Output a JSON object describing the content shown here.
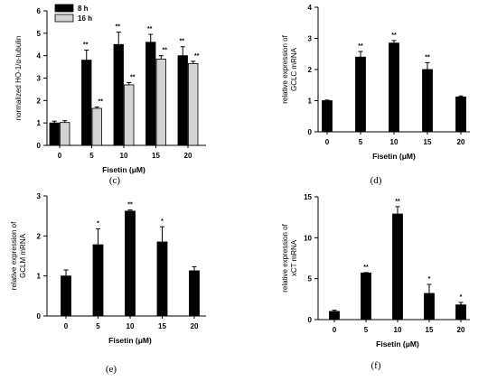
{
  "chart_data": [
    {
      "panel": "(c)",
      "type": "bar",
      "categories": [
        "0",
        "5",
        "10",
        "15",
        "20"
      ],
      "xlabel": "Fisetin (μM)",
      "ylabel": "normalized HO-1/α-tubulin",
      "ylim": [
        0,
        6
      ],
      "yticks": [
        0,
        1,
        2,
        3,
        4,
        5,
        6
      ],
      "legend_position": "top-left",
      "series": [
        {
          "name": "8 h",
          "color": "#000000",
          "values": [
            1.0,
            3.8,
            4.5,
            4.6,
            4.0
          ],
          "errors": [
            0.08,
            0.45,
            0.55,
            0.35,
            0.4
          ],
          "significance": [
            "",
            "**",
            "**",
            "**",
            "**"
          ]
        },
        {
          "name": "16 h",
          "color": "#d3d3d3",
          "values": [
            1.02,
            1.65,
            2.7,
            3.85,
            3.65
          ],
          "errors": [
            0.08,
            0.06,
            0.1,
            0.15,
            0.1
          ],
          "significance": [
            "",
            "**",
            "**",
            "**",
            "**"
          ]
        }
      ]
    },
    {
      "panel": "(d)",
      "type": "bar",
      "categories": [
        "0",
        "5",
        "10",
        "15",
        "20"
      ],
      "xlabel": "Fisetin (μM)",
      "ylabel": [
        "relative expression of",
        "GCLC mRNA"
      ],
      "ylim": [
        0,
        4
      ],
      "yticks": [
        0,
        1,
        2,
        3,
        4
      ],
      "series": [
        {
          "color": "#000000",
          "values": [
            1.0,
            2.4,
            2.85,
            2.0,
            1.12
          ],
          "errors": [
            0.02,
            0.18,
            0.08,
            0.22,
            0.03
          ],
          "significance": [
            "",
            "**",
            "**",
            "**",
            ""
          ]
        }
      ]
    },
    {
      "panel": "(e)",
      "type": "bar",
      "categories": [
        "0",
        "5",
        "10",
        "15",
        "20"
      ],
      "xlabel": "Fisetin (μM)",
      "ylabel": [
        "relative expression of",
        "GCLM mRNA"
      ],
      "ylim": [
        0,
        3
      ],
      "yticks": [
        0,
        1,
        2,
        3
      ],
      "series": [
        {
          "color": "#000000",
          "values": [
            1.0,
            1.78,
            2.62,
            1.85,
            1.13
          ],
          "errors": [
            0.15,
            0.4,
            0.03,
            0.38,
            0.1
          ],
          "significance": [
            "",
            "*",
            "**",
            "*",
            ""
          ]
        }
      ]
    },
    {
      "panel": "(f)",
      "type": "bar",
      "categories": [
        "0",
        "5",
        "10",
        "15",
        "20"
      ],
      "xlabel": "Fisetin (μM)",
      "ylabel": [
        "relative expression of",
        "xCT mRNA"
      ],
      "ylim": [
        0,
        15
      ],
      "yticks": [
        0,
        5,
        10,
        15
      ],
      "series": [
        {
          "color": "#000000",
          "values": [
            1.0,
            5.7,
            12.9,
            3.2,
            1.8
          ],
          "errors": [
            0.15,
            0.05,
            0.9,
            1.1,
            0.3
          ],
          "significance": [
            "",
            "**",
            "**",
            "*",
            "*"
          ]
        }
      ]
    }
  ]
}
